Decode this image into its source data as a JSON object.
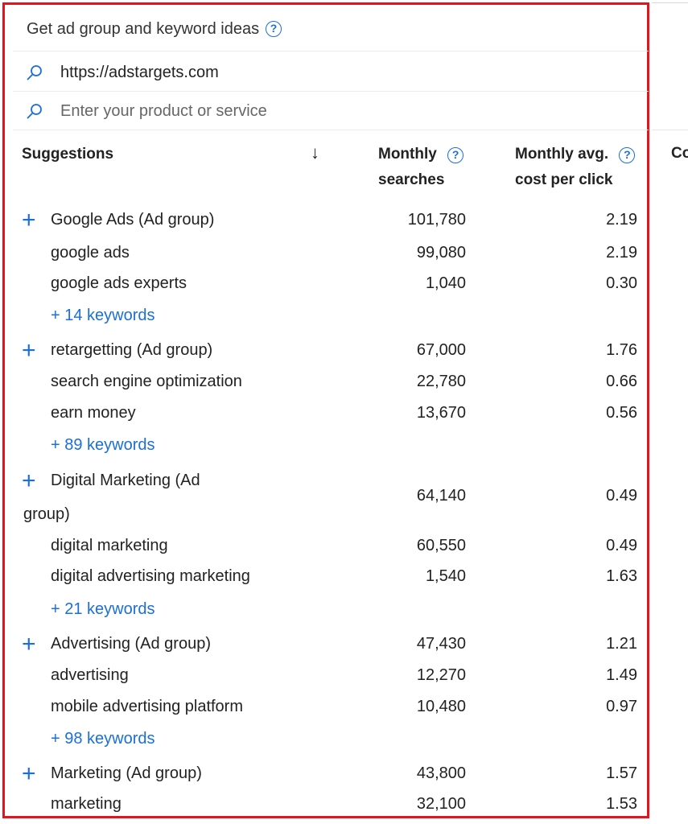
{
  "panel": {
    "title": "Get ad group and keyword ideas",
    "help_glyph": "?"
  },
  "inputs": {
    "url_value": "https://adstargets.com",
    "product_placeholder": "Enter your product or service"
  },
  "columns": {
    "suggestions": "Suggestions",
    "sort_glyph": "↓",
    "monthly_searches_1": "Monthly",
    "monthly_searches_2": "searches",
    "cpc_1": "Monthly avg.",
    "cpc_2": "cost per click",
    "cut_col": "Co"
  },
  "groups": [
    {
      "name": "Google Ads (Ad group)",
      "searches": "101,780",
      "cpc": "2.19",
      "keywords": [
        {
          "name": "google ads",
          "searches": "99,080",
          "cpc": "2.19"
        },
        {
          "name": "google ads experts",
          "searches": "1,040",
          "cpc": "0.30"
        }
      ],
      "more": "+ 14 keywords"
    },
    {
      "name": "retargetting (Ad group)",
      "searches": "67,000",
      "cpc": "1.76",
      "keywords": [
        {
          "name": "search engine optimization",
          "searches": "22,780",
          "cpc": "0.66"
        },
        {
          "name": "earn money",
          "searches": "13,670",
          "cpc": "0.56"
        }
      ],
      "more": "+ 89 keywords"
    },
    {
      "name_line1": "Digital Marketing (Ad",
      "name_line2": "group)",
      "searches": "64,140",
      "cpc": "0.49",
      "keywords": [
        {
          "name": "digital marketing",
          "searches": "60,550",
          "cpc": "0.49"
        },
        {
          "name": "digital advertising marketing",
          "searches": "1,540",
          "cpc": "1.63"
        }
      ],
      "more": "+ 21 keywords"
    },
    {
      "name": "Advertising (Ad group)",
      "searches": "47,430",
      "cpc": "1.21",
      "keywords": [
        {
          "name": "advertising",
          "searches": "12,270",
          "cpc": "1.49"
        },
        {
          "name": "mobile advertising platform",
          "searches": "10,480",
          "cpc": "0.97"
        }
      ],
      "more": "+ 98 keywords"
    },
    {
      "name": "Marketing (Ad group)",
      "searches": "43,800",
      "cpc": "1.57",
      "keywords": [
        {
          "name": "marketing",
          "searches": "32,100",
          "cpc": "1.53"
        }
      ]
    }
  ],
  "colors": {
    "highlight_border": "#e3141b",
    "accent": "#1a6fd8"
  }
}
